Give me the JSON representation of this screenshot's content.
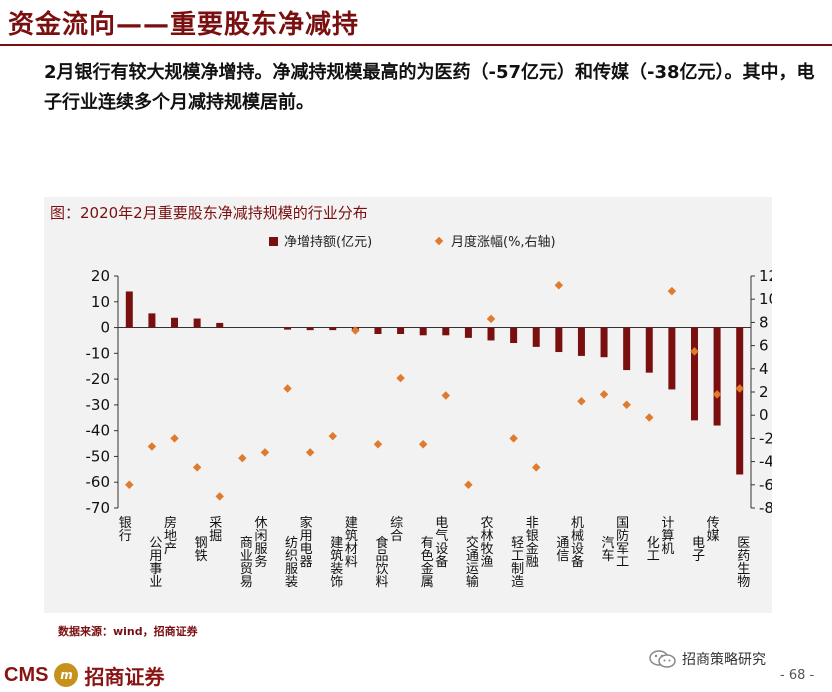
{
  "header": {
    "title": "资金流向——重要股东净减持",
    "summary": "2月银行有较大规模净增持。净减持规模最高的为医药（-57亿元）和传媒（-38亿元）。其中，电子行业连续多个月减持规模居前。"
  },
  "colors": {
    "accent": "#7a0f10",
    "bar": "#7a0f10",
    "marker": "#e07b2e",
    "panel": "#f2f2f2"
  },
  "chart_data": {
    "type": "bar",
    "title": "图：2020年2月重要股东净减持规模的行业分布",
    "categories": [
      "银行",
      "公用事业",
      "房地产",
      "钢铁",
      "采掘",
      "商业贸易",
      "休闲服务",
      "纺织服装",
      "家用电器",
      "建筑装饰",
      "建筑材料",
      "食品饮料",
      "综合",
      "有色金属",
      "电气设备",
      "交通运输",
      "农林牧渔",
      "轻工制造",
      "非银金融",
      "通信",
      "机械设备",
      "汽车",
      "国防军工",
      "化工",
      "计算机",
      "电子",
      "传媒",
      "医药生物"
    ],
    "series": [
      {
        "name": "净增持额(亿元)",
        "type": "bar",
        "axis": "left",
        "values": [
          14,
          5.5,
          3.8,
          3.5,
          1.8,
          0,
          0,
          -0.8,
          -1,
          -1,
          -1.5,
          -2.5,
          -2.5,
          -3,
          -3,
          -4,
          -5,
          -6,
          -7.5,
          -9.5,
          -11,
          -11.5,
          -16.5,
          -17.5,
          -24,
          -36,
          -38,
          -57
        ]
      },
      {
        "name": "月度涨幅(%,右轴)",
        "type": "scatter",
        "axis": "right",
        "values": [
          -6.0,
          -2.7,
          -2.0,
          -4.5,
          -7.0,
          -3.7,
          -3.2,
          2.3,
          -3.2,
          -1.8,
          7.3,
          -2.5,
          3.2,
          -2.5,
          1.7,
          -6.0,
          8.3,
          -2.0,
          -4.5,
          11.2,
          1.2,
          1.8,
          0.9,
          -0.2,
          10.7,
          5.5,
          1.8,
          2.3
        ]
      }
    ],
    "ylim_left": [
      -70,
      20
    ],
    "yticks_left": [
      20,
      10,
      0,
      -10,
      -20,
      -30,
      -40,
      -50,
      -60,
      -70
    ],
    "ylim_right": [
      -8,
      12
    ],
    "yticks_right": [
      12,
      10,
      8,
      6,
      4,
      2,
      0,
      -2,
      -4,
      -6,
      -8
    ],
    "legend_position": "top-center"
  },
  "footer": {
    "source": "数据来源：wind，招商证券",
    "brand_cms": "CMS",
    "brand_logo_text": "m",
    "brand_cn": "招商证券",
    "wechat_label": "招商策略研究",
    "page_number": "- 68 -"
  }
}
